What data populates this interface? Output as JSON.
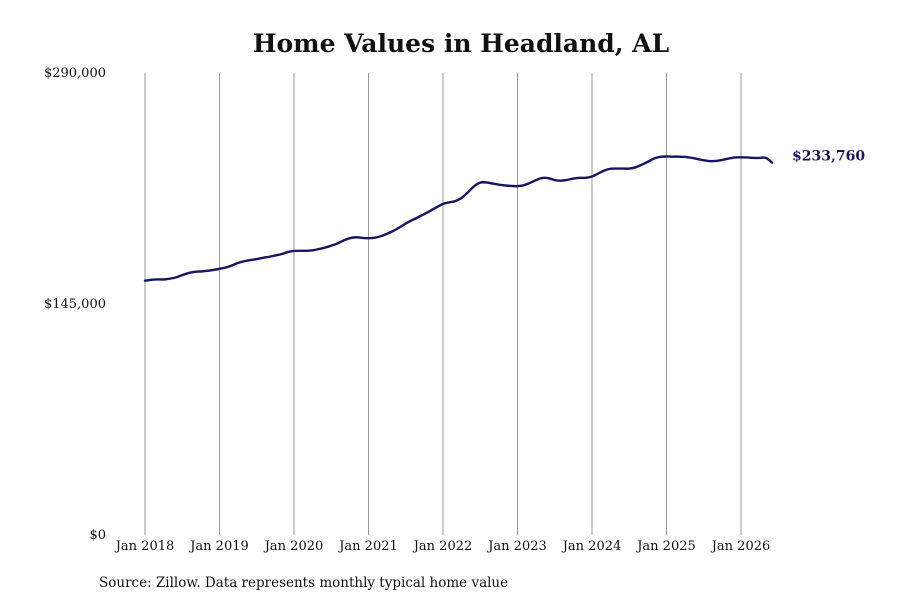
{
  "chart_data": {
    "type": "line",
    "title": "Home Values in Headland, AL",
    "xlabel": "",
    "ylabel": "",
    "ylim": [
      0,
      290000
    ],
    "y_ticks": [
      0,
      145000,
      290000
    ],
    "y_tick_labels": [
      "$0",
      "$145,000",
      "$290,000"
    ],
    "x_ticks": [
      "2018-01",
      "2019-01",
      "2020-01",
      "2021-01",
      "2022-01",
      "2023-01",
      "2024-01",
      "2025-01",
      "2026-01"
    ],
    "x_tick_labels": [
      "Jan 2018",
      "Jan 2019",
      "Jan 2020",
      "Jan 2021",
      "Jan 2022",
      "Jan 2023",
      "Jan 2024",
      "Jan 2025",
      "Jan 2026"
    ],
    "grid": "vertical",
    "line_color": "#161660",
    "end_label": "$233,760",
    "series": [
      {
        "x": [
          "2018-01",
          "2018-02",
          "2018-03",
          "2018-04",
          "2018-05",
          "2018-06",
          "2018-07",
          "2018-08",
          "2018-09",
          "2018-10",
          "2018-11",
          "2018-12",
          "2019-01",
          "2019-02",
          "2019-03",
          "2019-04",
          "2019-05",
          "2019-06",
          "2019-07",
          "2019-08",
          "2019-09",
          "2019-10",
          "2019-11",
          "2019-12",
          "2020-01",
          "2020-02",
          "2020-03",
          "2020-04",
          "2020-05",
          "2020-06",
          "2020-07",
          "2020-08",
          "2020-09",
          "2020-10",
          "2020-11",
          "2020-12",
          "2021-01",
          "2021-02",
          "2021-03",
          "2021-04",
          "2021-05",
          "2021-06",
          "2021-07",
          "2021-08",
          "2021-09",
          "2021-10",
          "2021-11",
          "2021-12",
          "2022-01",
          "2022-02",
          "2022-03",
          "2022-04",
          "2022-05",
          "2022-06",
          "2022-07",
          "2022-08",
          "2022-09",
          "2022-10",
          "2022-11",
          "2022-12",
          "2023-01",
          "2023-02",
          "2023-03",
          "2023-04",
          "2023-05",
          "2023-06",
          "2023-07",
          "2023-08",
          "2023-09",
          "2023-10",
          "2023-11",
          "2023-12",
          "2024-01",
          "2024-02",
          "2024-03",
          "2024-04",
          "2024-05",
          "2024-06",
          "2024-07",
          "2024-08",
          "2024-09",
          "2024-10",
          "2024-11",
          "2024-12",
          "2025-01",
          "2025-02",
          "2025-03",
          "2025-04",
          "2025-05",
          "2025-06",
          "2025-07",
          "2025-08",
          "2025-09",
          "2025-10",
          "2025-11",
          "2025-12",
          "2026-01",
          "2026-02",
          "2026-03",
          "2026-04",
          "2026-05",
          "2026-06"
        ],
        "values": [
          159600,
          160200,
          160400,
          160400,
          160900,
          161700,
          163100,
          164400,
          165200,
          165400,
          165800,
          166400,
          167100,
          167900,
          169200,
          170800,
          171900,
          172600,
          173200,
          174000,
          174600,
          175500,
          176300,
          177600,
          178300,
          178400,
          178400,
          178700,
          179500,
          180400,
          181600,
          183000,
          184900,
          186300,
          186900,
          186500,
          186300,
          186600,
          187600,
          189100,
          190900,
          193100,
          195500,
          197600,
          199500,
          201500,
          203600,
          205800,
          207800,
          208800,
          209600,
          211600,
          215100,
          218900,
          221200,
          221300,
          220600,
          219900,
          219400,
          219100,
          219000,
          219500,
          221000,
          222800,
          224100,
          224000,
          222800,
          222400,
          222900,
          223700,
          224200,
          224200,
          225000,
          226900,
          228800,
          229900,
          230000,
          230000,
          230000,
          230800,
          232400,
          234300,
          236300,
          237400,
          237600,
          237500,
          237500,
          237300,
          236800,
          236000,
          235200,
          234700,
          234800,
          235400,
          236300,
          237000,
          237100,
          237000,
          236700,
          236700,
          236700,
          233760
        ]
      }
    ]
  },
  "source_note": "Source: Zillow. Data represents monthly typical home value"
}
